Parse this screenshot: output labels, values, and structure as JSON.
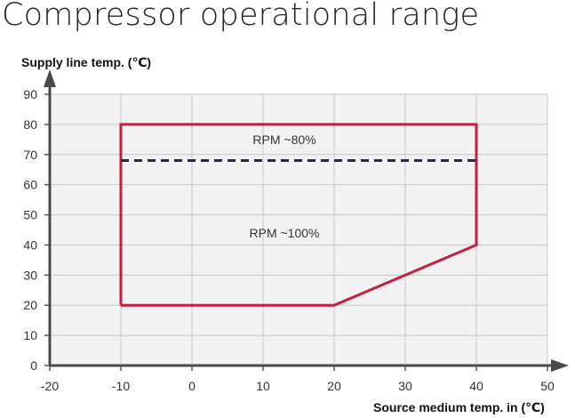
{
  "chart_data": {
    "type": "line",
    "title": "Compressor operational range",
    "xlabel": "Source medium temp. in (℃)",
    "ylabel": "Supply line temp. (℃)",
    "xlim": [
      -20,
      50
    ],
    "ylim": [
      0,
      90
    ],
    "x_ticks": [
      -20,
      -10,
      0,
      10,
      20,
      30,
      40,
      50
    ],
    "y_ticks": [
      0,
      10,
      20,
      30,
      40,
      50,
      60,
      70,
      80,
      90
    ],
    "grid": true,
    "series": [
      {
        "style": "solid",
        "color": "#c41e3a",
        "points": [
          [
            -10,
            20
          ],
          [
            -10,
            80
          ],
          [
            40,
            80
          ],
          [
            40,
            40
          ],
          [
            20,
            20
          ],
          [
            -10,
            20
          ]
        ]
      },
      {
        "style": "dashed",
        "color": "#1a2a5a",
        "points": [
          [
            -10,
            68
          ],
          [
            40,
            68
          ]
        ]
      }
    ],
    "annotations": [
      {
        "text": "RPM ~80%",
        "x": 13,
        "y": 75
      },
      {
        "text": "RPM ~100%",
        "x": 13,
        "y": 44
      }
    ]
  }
}
